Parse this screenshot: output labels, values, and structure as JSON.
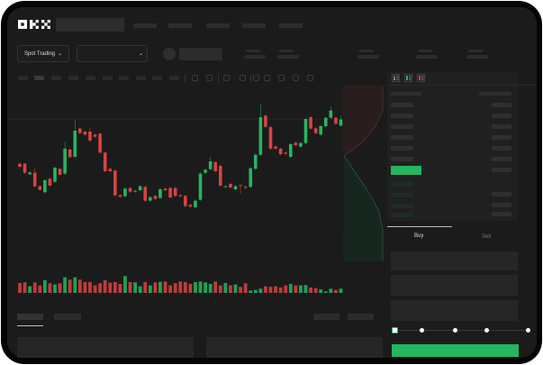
{
  "brand": {
    "logo": "OKX"
  },
  "toolbar": {
    "market_selector": "Spot Trading"
  },
  "order_form": {
    "tabs": [
      {
        "label": "Buy",
        "active": true
      },
      {
        "label": "Sell",
        "active": false
      }
    ],
    "slider_percent": 0
  },
  "colors": {
    "up": "#25b660",
    "down": "#d84343",
    "background": "#1b1b1b",
    "accent": "#25b660"
  },
  "chart": {
    "type": "candlestick",
    "candles": [
      [
        185,
        175
      ],
      [
        185,
        155
      ],
      [
        150,
        156
      ],
      [
        155,
        110,
        170
      ],
      [
        110,
        98
      ],
      [
        90,
        130
      ],
      [
        135,
        112
      ],
      [
        125,
        172
      ],
      [
        168,
        148
      ],
      [
        152,
        235,
        258
      ],
      [
        232,
        207
      ],
      [
        208,
        295,
        332
      ],
      [
        302,
        287
      ],
      [
        292,
        282
      ],
      [
        292,
        262,
        306
      ],
      [
        282,
        275
      ],
      [
        285,
        222
      ],
      [
        222,
        160
      ],
      [
        168,
        160
      ],
      [
        162,
        80
      ],
      [
        80,
        75
      ],
      [
        77,
        102
      ],
      [
        104,
        92
      ],
      [
        92,
        95
      ],
      [
        97,
        110
      ],
      [
        108,
        62
      ],
      [
        62,
        74
      ],
      [
        78,
        68
      ],
      [
        71,
        100
      ],
      [
        102,
        97
      ],
      [
        104,
        73
      ],
      [
        104,
        78
      ],
      [
        80,
        78
      ],
      [
        78,
        44
      ],
      [
        48,
        42
      ],
      [
        40,
        62
      ],
      [
        65,
        152
      ],
      [
        155,
        165
      ],
      [
        167,
        193,
        208
      ],
      [
        190,
        160
      ],
      [
        178,
        112
      ],
      [
        108,
        110
      ],
      [
        118,
        106
      ],
      [
        100,
        110
      ],
      [
        114,
        112,
        116,
        85
      ],
      [
        108,
        105
      ],
      [
        108,
        170
      ],
      [
        168,
        215
      ],
      [
        215,
        340,
        385
      ],
      [
        345,
        308
      ],
      [
        307,
        235
      ],
      [
        242,
        235
      ],
      [
        235,
        217
      ],
      [
        222,
        218
      ],
      [
        208,
        250
      ],
      [
        255,
        247
      ],
      [
        242,
        254
      ],
      [
        254,
        334
      ],
      [
        340,
        302
      ],
      [
        303,
        287
      ],
      [
        282,
        310
      ],
      [
        310,
        338
      ],
      [
        338,
        362,
        375
      ],
      [
        338,
        318
      ],
      [
        312,
        332,
        345
      ]
    ],
    "volumes": [
      33,
      35,
      22,
      35,
      25,
      42,
      32,
      28,
      32,
      52,
      44,
      52,
      44,
      36,
      36,
      25,
      32,
      42,
      34,
      36,
      30,
      56,
      36,
      35,
      22,
      36,
      25,
      35,
      37,
      38,
      25,
      32,
      38,
      36,
      30,
      36,
      38,
      35,
      30,
      38,
      25,
      33,
      25,
      28,
      20,
      32,
      8,
      10,
      14,
      22,
      20,
      22,
      18,
      25,
      30,
      25,
      25,
      26,
      18,
      16,
      12,
      5,
      14,
      10,
      14
    ]
  }
}
